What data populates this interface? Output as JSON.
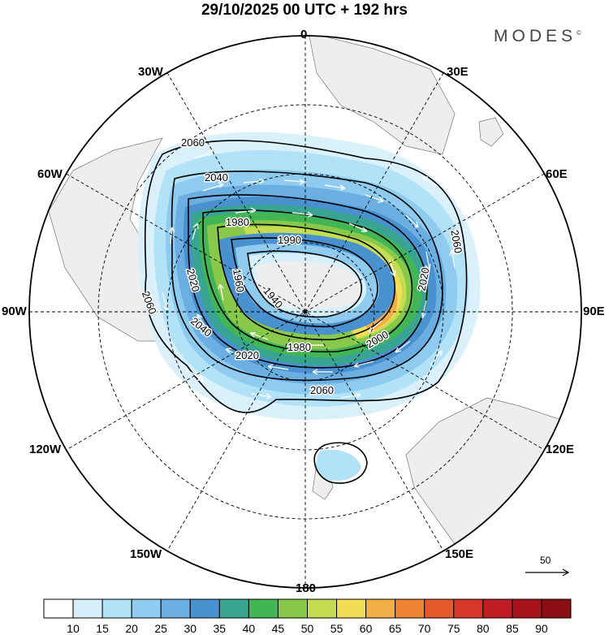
{
  "title": "29/10/2025  00 UTC  + 192 hrs",
  "brand": "MODES",
  "brand_mark": "©",
  "meridian_labels": {
    "top": "0",
    "bottom": "180",
    "left": "90W",
    "right": "90E",
    "w30": "30W",
    "e30": "30E",
    "w60": "60W",
    "e60": "60E",
    "w120": "120W",
    "e120": "120E",
    "w150": "150W",
    "e150": "150E"
  },
  "contour_labels": [
    "2060",
    "2040",
    "1980",
    "1990",
    "1960",
    "2020",
    "1940",
    "2060",
    "2040",
    "2020",
    "1980",
    "2000",
    "2060",
    "2020",
    "2060"
  ],
  "vector_reference": "50",
  "colorbar": {
    "ticks": [
      "10",
      "15",
      "20",
      "25",
      "30",
      "35",
      "40",
      "45",
      "50",
      "55",
      "60",
      "65",
      "70",
      "75",
      "80",
      "85",
      "90"
    ],
    "colors": [
      "#ffffff",
      "#d6f0fb",
      "#b2e2f7",
      "#8ecbef",
      "#6aaee2",
      "#4a92cf",
      "#3aa493",
      "#42b554",
      "#88c84a",
      "#c4dc52",
      "#f3dc56",
      "#f4ae46",
      "#ef8534",
      "#e45a2c",
      "#d83628",
      "#c21d24",
      "#a8141c",
      "#8b0f12"
    ]
  },
  "colors": {
    "land": "#eeeeee",
    "coast": "#777777",
    "contour": "#000000",
    "graticule": "#000000"
  }
}
